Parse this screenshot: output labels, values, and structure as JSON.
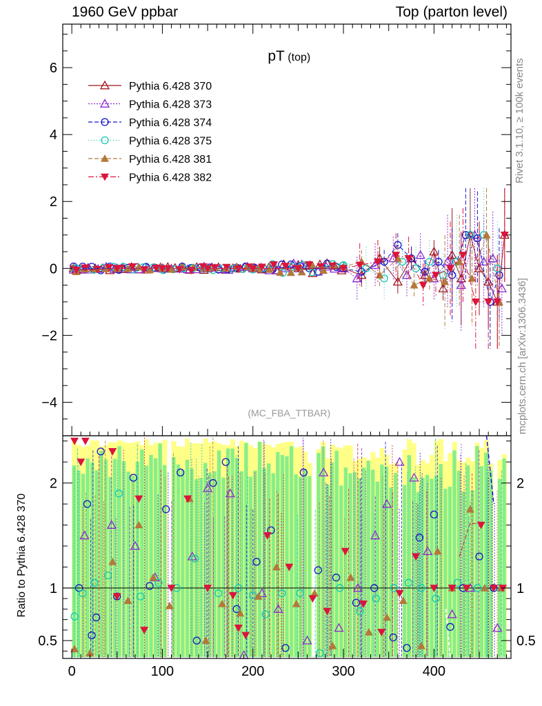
{
  "header": {
    "left": "1960 GeV ppbar",
    "right": "Top (parton level)"
  },
  "side_labels": {
    "rivet": "Rivet 3.1.10, ≥ 100k events",
    "mcplots": "mcplots.cern.ch [arXiv:1306.3436]"
  },
  "chart_data": [
    {
      "type": "scatter",
      "panel": "main",
      "title": "pT",
      "title_sub": "(top)",
      "watermark": "(MC_FBA_TTBAR)",
      "xlim": [
        -10,
        485
      ],
      "ylim": [
        -5,
        7.3
      ],
      "yticks": [
        -4,
        -2,
        0,
        2,
        4,
        6
      ],
      "ytick_labels": [
        "−4",
        "−2",
        "0",
        "2",
        "4",
        "6"
      ],
      "grid": false,
      "legend_position": "top-left",
      "series": [
        {
          "name": "Pythia 6.428 370",
          "color": "#a0141e",
          "marker": "triangle-open",
          "dash": "",
          "x": [
            5,
            50,
            100,
            150,
            200,
            250,
            300,
            320,
            340,
            360,
            375,
            390,
            400,
            410,
            420,
            430,
            440,
            450,
            460,
            470,
            478
          ],
          "y": [
            -0.05,
            0.0,
            0.0,
            0.0,
            0.0,
            0.0,
            0.0,
            -0.2,
            0.3,
            -0.4,
            0.3,
            -0.2,
            0.5,
            -0.6,
            0.4,
            -0.3,
            1.0,
            0.0,
            -0.4,
            -1.0,
            1.0
          ]
        },
        {
          "name": "Pythia 6.428 373",
          "color": "#8c28d2",
          "marker": "triangle-open",
          "dash": "2,2",
          "x": [
            5,
            50,
            100,
            150,
            200,
            250,
            300,
            315,
            335,
            355,
            370,
            385,
            400,
            415,
            430,
            445,
            455,
            465,
            475
          ],
          "y": [
            -0.02,
            0.0,
            0.0,
            0.0,
            0.0,
            0.0,
            0.0,
            -0.3,
            0.1,
            0.3,
            -0.2,
            0.4,
            -0.3,
            0.2,
            -0.5,
            1.0,
            0.2,
            0.3,
            -0.6
          ]
        },
        {
          "name": "Pythia 6.428 374",
          "color": "#1414c8",
          "marker": "circle-open",
          "dash": "6,3",
          "x": [
            5,
            50,
            100,
            150,
            200,
            250,
            300,
            320,
            345,
            360,
            375,
            390,
            405,
            420,
            435,
            448,
            462,
            472
          ],
          "y": [
            0.0,
            0.0,
            0.0,
            0.0,
            0.0,
            0.0,
            0.0,
            -0.1,
            0.2,
            0.7,
            0.3,
            -0.1,
            0.2,
            -0.2,
            1.0,
            0.9,
            -1.0,
            -0.2
          ]
        },
        {
          "name": "Pythia 6.428 375",
          "color": "#14c8b4",
          "marker": "circle-open",
          "dash": "1,3",
          "x": [
            5,
            50,
            100,
            150,
            200,
            250,
            300,
            325,
            345,
            365,
            380,
            395,
            410,
            425,
            440,
            455,
            470
          ],
          "y": [
            0.0,
            0.0,
            0.0,
            0.0,
            0.0,
            0.0,
            0.1,
            0.0,
            -0.3,
            0.2,
            0.0,
            0.2,
            -0.2,
            0.2,
            1.0,
            1.0,
            0.0
          ]
        },
        {
          "name": "Pythia 6.428 381",
          "color": "#b4783c",
          "marker": "triangle-filled",
          "dash": "6,3",
          "x": [
            5,
            50,
            100,
            150,
            200,
            250,
            300,
            320,
            340,
            360,
            378,
            395,
            412,
            428,
            442,
            458,
            472
          ],
          "y": [
            -0.1,
            0.0,
            0.0,
            0.0,
            0.0,
            0.0,
            0.05,
            0.2,
            -0.2,
            0.3,
            -0.5,
            -0.3,
            -0.4,
            0.2,
            -0.3,
            1.0,
            -1.0
          ]
        },
        {
          "name": "Pythia 6.428 382",
          "color": "#dc143c",
          "marker": "triangle-down-filled",
          "dash": "8,3,2,3",
          "x": [
            5,
            50,
            100,
            150,
            200,
            250,
            300,
            318,
            338,
            358,
            372,
            388,
            402,
            418,
            432,
            446,
            460,
            470,
            478
          ],
          "y": [
            -0.05,
            0.0,
            0.0,
            0.0,
            0.0,
            0.0,
            0.0,
            0.1,
            0.2,
            0.4,
            0.3,
            -0.5,
            -0.2,
            0.0,
            0.4,
            -1.0,
            -1.0,
            -1.0,
            1.0
          ]
        }
      ]
    },
    {
      "type": "scatter",
      "panel": "ratio",
      "ylabel": "Ratio to Pythia 6.428 370",
      "xlim": [
        -10,
        485
      ],
      "ylim": [
        0.33,
        2.45
      ],
      "xticks": [
        0,
        100,
        200,
        300,
        400
      ],
      "xtick_labels": [
        "0",
        "100",
        "200",
        "300",
        "400"
      ],
      "yticks": [
        0.5,
        1,
        2
      ],
      "ytick_labels": [
        "0.5",
        "1",
        "2"
      ],
      "reference_line": 1,
      "series": [
        {
          "name": "Pythia 6.428 373",
          "color": "#8c28d2",
          "x": [
            14,
            44,
            70,
            92,
            133,
            150,
            175,
            190,
            210,
            228,
            260,
            278,
            295,
            316,
            335,
            348,
            362,
            378,
            393,
            420,
            440,
            470
          ],
          "y": [
            1.5,
            1.6,
            1.4,
            1.1,
            1.3,
            1.95,
            1.9,
            0.36,
            0.95,
            0.8,
            0.5,
            2.1,
            0.62,
            1.0,
            1.5,
            1.8,
            2.2,
            2.05,
            1.35,
            0.75,
            1.0,
            0.62
          ]
        },
        {
          "name": "Pythia 6.428 374",
          "color": "#1414c8",
          "x": [
            8,
            17,
            22,
            27,
            32,
            50,
            68,
            86,
            104,
            120,
            138,
            156,
            170,
            182,
            204,
            220,
            236,
            256,
            272,
            292,
            314,
            334,
            355,
            370,
            384,
            400,
            418,
            432,
            450,
            466
          ],
          "y": [
            1.0,
            1.8,
            0.55,
            0.72,
            2.3,
            0.92,
            2.05,
            1.02,
            1.75,
            2.1,
            0.5,
            2.0,
            2.2,
            0.8,
            1.25,
            1.55,
            0.43,
            2.1,
            1.17,
            1.1,
            0.86,
            1.0,
            0.53,
            0.43,
            1.48,
            1.7,
            0.63,
            1.0,
            1.3,
            1.0
          ]
        },
        {
          "name": "Pythia 6.428 375",
          "color": "#14c8b4",
          "x": [
            3,
            12,
            25,
            40,
            52,
            76,
            96,
            116,
            136,
            162,
            184,
            200,
            214,
            232,
            252,
            274,
            296,
            318,
            336,
            356,
            372,
            386,
            402,
            426,
            448,
            472
          ],
          "y": [
            0.73,
            0.95,
            1.05,
            1.12,
            1.9,
            0.92,
            1.05,
            1.0,
            1.28,
            0.95,
            1.0,
            0.93,
            0.75,
            0.95,
            0.95,
            0.38,
            1.0,
            0.78,
            0.9,
            1.0,
            1.05,
            1.0,
            0.9,
            1.05,
            1.0,
            1.0
          ]
        },
        {
          "name": "Pythia 6.428 381",
          "color": "#b4783c",
          "x": [
            3,
            20,
            45,
            62,
            74,
            90,
            108,
            130,
            148,
            166,
            186,
            206,
            226,
            248,
            268,
            288,
            308,
            328,
            348,
            366,
            386,
            404,
            420,
            440,
            456,
            474
          ],
          "y": [
            0.42,
            0.38,
            1.25,
            0.88,
            1.6,
            1.1,
            0.83,
            1.85,
            0.5,
            0.85,
            0.76,
            0.92,
            1.2,
            0.85,
            0.95,
            0.45,
            1.1,
            0.58,
            0.72,
            0.88,
            0.45,
            1.35,
            1.0,
            1.75,
            1.0,
            1.0
          ]
        },
        {
          "name": "Pythia 6.428 382",
          "color": "#dc143c",
          "x": [
            3,
            10,
            15,
            45,
            50,
            74,
            80,
            110,
            128,
            150,
            178,
            184,
            192,
            216,
            240,
            266,
            282,
            302,
            322,
            342,
            362,
            380,
            400,
            420,
            436,
            452,
            466,
            476
          ],
          "y": [
            2.4,
            2.2,
            2.4,
            2.3,
            0.92,
            1.85,
            0.6,
            1.0,
            1.85,
            1.0,
            0.93,
            0.62,
            0.55,
            1.5,
            1.2,
            0.9,
            0.78,
            1.35,
            0.85,
            0.58,
            0.95,
            1.3,
            1.0,
            1.0,
            1.0,
            1.6,
            1.0,
            1.0
          ]
        }
      ]
    }
  ]
}
